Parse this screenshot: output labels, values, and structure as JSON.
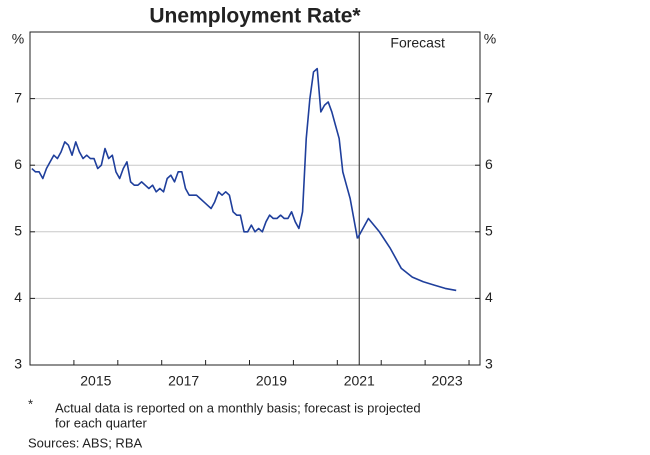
{
  "chart_data": {
    "type": "line",
    "title": "Unemployment Rate*",
    "y_unit": "%",
    "annotation": "Forecast",
    "forecast_start": 2021.5,
    "footnote_marker": "*",
    "footnote": [
      "Actual data is reported on a monthly basis; forecast is projected",
      "for each quarter"
    ],
    "source": "Sources: ABS; RBA",
    "xlim": [
      2014,
      2024.25
    ],
    "xticks": [
      {
        "value": 2015.5,
        "label": "2015"
      },
      {
        "value": 2017.5,
        "label": "2017"
      },
      {
        "value": 2019.5,
        "label": "2019"
      },
      {
        "value": 2021.5,
        "label": "2021"
      },
      {
        "value": 2023.5,
        "label": "2023"
      }
    ],
    "xticks_minor": [
      2015,
      2016,
      2017,
      2018,
      2019,
      2020,
      2021,
      2022,
      2023,
      2024
    ],
    "ylim": [
      3,
      8
    ],
    "yticks": [
      3,
      4,
      5,
      6,
      7
    ],
    "grid": true,
    "series": [
      {
        "color": "#1f3f9c",
        "x": [
          2014.042,
          2014.125,
          2014.208,
          2014.292,
          2014.375,
          2014.458,
          2014.542,
          2014.625,
          2014.708,
          2014.792,
          2014.875,
          2014.958,
          2015.042,
          2015.125,
          2015.208,
          2015.292,
          2015.375,
          2015.458,
          2015.542,
          2015.625,
          2015.708,
          2015.792,
          2015.875,
          2015.958,
          2016.042,
          2016.125,
          2016.208,
          2016.292,
          2016.375,
          2016.458,
          2016.542,
          2016.625,
          2016.708,
          2016.792,
          2016.875,
          2016.958,
          2017.042,
          2017.125,
          2017.208,
          2017.292,
          2017.375,
          2017.458,
          2017.542,
          2017.625,
          2017.708,
          2017.792,
          2017.875,
          2017.958,
          2018.042,
          2018.125,
          2018.208,
          2018.292,
          2018.375,
          2018.458,
          2018.542,
          2018.625,
          2018.708,
          2018.792,
          2018.875,
          2018.958,
          2019.042,
          2019.125,
          2019.208,
          2019.292,
          2019.375,
          2019.458,
          2019.542,
          2019.625,
          2019.708,
          2019.792,
          2019.875,
          2019.958,
          2020.042,
          2020.125,
          2020.208,
          2020.292,
          2020.375,
          2020.458,
          2020.542,
          2020.625,
          2020.708,
          2020.792,
          2020.875,
          2020.958,
          2021.042,
          2021.125,
          2021.208,
          2021.292,
          2021.375,
          2021.458
        ],
        "values": [
          5.95,
          5.9,
          5.9,
          5.8,
          5.95,
          6.05,
          6.15,
          6.1,
          6.2,
          6.35,
          6.3,
          6.15,
          6.35,
          6.2,
          6.1,
          6.15,
          6.1,
          6.1,
          5.95,
          6.0,
          6.25,
          6.1,
          6.15,
          5.9,
          5.8,
          5.95,
          6.05,
          5.75,
          5.7,
          5.7,
          5.75,
          5.7,
          5.65,
          5.7,
          5.6,
          5.65,
          5.6,
          5.8,
          5.85,
          5.75,
          5.9,
          5.9,
          5.65,
          5.55,
          5.55,
          5.55,
          5.5,
          5.45,
          5.4,
          5.35,
          5.45,
          5.6,
          5.55,
          5.6,
          5.55,
          5.3,
          5.25,
          5.25,
          5.0,
          5.0,
          5.1,
          5.0,
          5.05,
          5.0,
          5.15,
          5.25,
          5.2,
          5.2,
          5.25,
          5.2,
          5.2,
          5.3,
          5.15,
          5.05,
          5.3,
          6.4,
          7.0,
          7.4,
          7.45,
          6.8,
          6.9,
          6.95,
          6.8,
          6.6,
          6.4,
          5.9,
          5.7,
          5.5,
          5.2,
          4.9
        ]
      },
      {
        "color": "#1f3f9c",
        "x": [
          2021.458,
          2021.708,
          2021.958,
          2022.208,
          2022.458,
          2022.708,
          2022.958,
          2023.208,
          2023.458,
          2023.708
        ],
        "values": [
          4.9,
          5.2,
          5.0,
          4.75,
          4.45,
          4.32,
          4.25,
          4.2,
          4.15,
          4.12
        ]
      }
    ]
  }
}
